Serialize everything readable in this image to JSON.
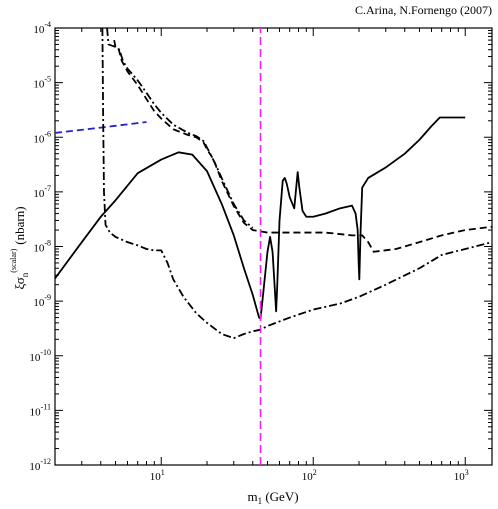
{
  "credit": "C.Arina, N.Fornengo (2007)",
  "chart_data": {
    "type": "line",
    "title": "",
    "xlabel": {
      "main": "m",
      "sub": "1",
      "unit": " (GeV)"
    },
    "ylabel": {
      "main": "ξσ",
      "sub": "n",
      "sup": "(scalar)",
      "unit": "(nbarn)"
    },
    "xscale": "log",
    "yscale": "log",
    "xlim": [
      2,
      1500
    ],
    "ylim": [
      1e-12,
      0.0001
    ],
    "x_ticks": [
      {
        "value": 10,
        "base": "10",
        "exp": "1"
      },
      {
        "value": 100,
        "base": "10",
        "exp": "2"
      },
      {
        "value": 1000,
        "base": "10",
        "exp": "3"
      }
    ],
    "y_ticks": [
      {
        "value": 0.0001,
        "base": "10",
        "exp": "-4"
      },
      {
        "value": 1e-05,
        "base": "10",
        "exp": "-5"
      },
      {
        "value": 1e-06,
        "base": "10",
        "exp": "-6"
      },
      {
        "value": 1e-07,
        "base": "10",
        "exp": "-7"
      },
      {
        "value": 1e-08,
        "base": "10",
        "exp": "-8"
      },
      {
        "value": 1e-09,
        "base": "10",
        "exp": "-9"
      },
      {
        "value": 1e-10,
        "base": "10",
        "exp": "-10"
      },
      {
        "value": 1e-11,
        "base": "10",
        "exp": "-11"
      },
      {
        "value": 1e-12,
        "base": "10",
        "exp": "-12"
      }
    ],
    "grid": false,
    "series": [
      {
        "style": "solid",
        "color": "#000000",
        "points": [
          [
            2,
            2.6e-09
          ],
          [
            3,
            1.2e-08
          ],
          [
            4,
            3.5e-08
          ],
          [
            5,
            7e-08
          ],
          [
            7,
            2.2e-07
          ],
          [
            10,
            3.9e-07
          ],
          [
            13,
            5.3e-07
          ],
          [
            16,
            4.8e-07
          ],
          [
            20,
            2.4e-07
          ],
          [
            25,
            6e-08
          ],
          [
            30,
            1.6e-08
          ],
          [
            35,
            4e-09
          ],
          [
            40,
            1.3e-09
          ],
          [
            44,
            5e-10
          ],
          [
            45,
            4.8e-10
          ],
          [
            47,
            1.5e-09
          ],
          [
            50,
            8e-09
          ],
          [
            52,
            1.5e-08
          ],
          [
            54,
            8e-09
          ],
          [
            56,
            1.5e-09
          ],
          [
            57,
            6.5e-10
          ],
          [
            58,
            2e-09
          ],
          [
            60,
            3e-08
          ],
          [
            63,
            1.6e-07
          ],
          [
            65,
            1.8e-07
          ],
          [
            67,
            1.4e-07
          ],
          [
            70,
            8e-08
          ],
          [
            75,
            5e-08
          ],
          [
            79,
            2.3e-07
          ],
          [
            81,
            1.2e-07
          ],
          [
            85,
            4.5e-08
          ],
          [
            90,
            3.5e-08
          ],
          [
            100,
            3.5e-08
          ],
          [
            120,
            4e-08
          ],
          [
            150,
            5e-08
          ],
          [
            180,
            5.6e-08
          ],
          [
            190,
            4e-08
          ],
          [
            196,
            2e-08
          ],
          [
            199,
            5e-09
          ],
          [
            201,
            2.5e-09
          ],
          [
            205,
            2e-08
          ],
          [
            210,
            1.2e-07
          ],
          [
            230,
            1.8e-07
          ],
          [
            300,
            2.8e-07
          ],
          [
            400,
            5e-07
          ],
          [
            500,
            9e-07
          ],
          [
            600,
            1.6e-06
          ],
          [
            680,
            2.3e-06
          ],
          [
            1000,
            2.3e-06
          ]
        ]
      },
      {
        "style": "dashed",
        "color": "#2222cc",
        "points": [
          [
            2,
            1.2e-06
          ],
          [
            4,
            1.5e-06
          ],
          [
            8,
            1.9e-06
          ]
        ]
      },
      {
        "style": "dashed",
        "color": "#000000",
        "points": [
          [
            4.9,
            6e-05
          ],
          [
            5,
            4.5e-05
          ],
          [
            5.2,
            4.5e-05
          ],
          [
            5.5,
            2.5e-05
          ],
          [
            6,
            1.6e-05
          ],
          [
            7,
            9e-06
          ],
          [
            8,
            5e-06
          ],
          [
            9,
            3e-06
          ],
          [
            10,
            2.2e-06
          ],
          [
            12,
            1.4e-06
          ],
          [
            15,
            1.1e-06
          ],
          [
            17,
            1e-06
          ],
          [
            19,
            8e-07
          ],
          [
            20,
            6e-07
          ],
          [
            22,
            4e-07
          ],
          [
            25,
            1.6e-07
          ],
          [
            30,
            5.5e-08
          ],
          [
            35,
            2.7e-08
          ],
          [
            40,
            2e-08
          ],
          [
            50,
            1.8e-08
          ],
          [
            80,
            1.8e-08
          ],
          [
            120,
            1.8e-08
          ],
          [
            180,
            1.6e-08
          ],
          [
            210,
            1.6e-08
          ],
          [
            230,
            1.2e-08
          ],
          [
            250,
            8e-09
          ],
          [
            350,
            9e-09
          ],
          [
            500,
            1.2e-08
          ],
          [
            700,
            1.6e-08
          ],
          [
            1000,
            2e-08
          ],
          [
            1500,
            2.3e-08
          ]
        ]
      },
      {
        "style": "dashdot",
        "color": "#000000",
        "points": [
          [
            4.1,
            0.0001
          ],
          [
            4.15,
            2e-06
          ],
          [
            4.2,
            1e-07
          ],
          [
            4.3,
            2.5e-08
          ],
          [
            4.6,
            1.8e-08
          ],
          [
            5,
            1.5e-08
          ],
          [
            6,
            1.2e-08
          ],
          [
            7,
            1.05e-08
          ],
          [
            8,
            9e-09
          ],
          [
            9,
            8.5e-09
          ],
          [
            10,
            8.5e-09
          ],
          [
            11,
            5e-09
          ],
          [
            12,
            2.5e-09
          ],
          [
            14,
            1.2e-09
          ],
          [
            17,
            6e-10
          ],
          [
            20,
            4e-10
          ],
          [
            25,
            2.5e-10
          ],
          [
            30,
            2.1e-10
          ],
          [
            35,
            2.5e-10
          ],
          [
            40,
            2.8e-10
          ],
          [
            45,
            3e-10
          ],
          [
            50,
            3.5e-10
          ],
          [
            70,
            5e-10
          ],
          [
            100,
            7e-10
          ],
          [
            150,
            9e-10
          ],
          [
            200,
            1.2e-09
          ],
          [
            300,
            2e-09
          ],
          [
            500,
            4e-09
          ],
          [
            700,
            7e-09
          ],
          [
            1000,
            9e-09
          ],
          [
            1500,
            1.2e-08
          ]
        ]
      },
      {
        "style": "dashdot",
        "color": "#000000",
        "points": [
          [
            4.4,
            0.0001
          ],
          [
            4.5,
            5e-05
          ],
          [
            5,
            4.5e-05
          ],
          [
            5.3,
            4e-05
          ],
          [
            5.6,
            2.5e-05
          ],
          [
            6,
            1.8e-05
          ],
          [
            7,
            1.1e-05
          ],
          [
            8,
            6.5e-06
          ],
          [
            9,
            4e-06
          ],
          [
            10,
            2.8e-06
          ],
          [
            12,
            1.7e-06
          ],
          [
            15,
            1.2e-06
          ],
          [
            17,
            1.05e-06
          ],
          [
            19,
            8.5e-07
          ],
          [
            21,
            5e-07
          ],
          [
            23,
            3e-07
          ],
          [
            26,
            1.4e-07
          ],
          [
            30,
            6e-08
          ],
          [
            35,
            3e-08
          ],
          [
            40,
            2.2e-08
          ]
        ]
      },
      {
        "style": "dashed",
        "color": "#ee22ee",
        "vertical_at": 45,
        "points": [
          [
            45,
            1e-12
          ],
          [
            45,
            0.0001
          ]
        ]
      }
    ]
  }
}
